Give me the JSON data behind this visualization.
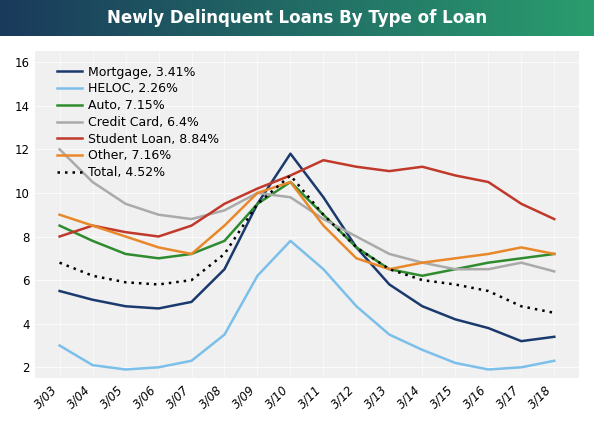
{
  "title": "Newly Delinquent Loans By Type of Loan",
  "title_bg_start": "#1a3a5c",
  "title_bg_end": "#2a9d6e",
  "x_labels": [
    "3/03",
    "3/04",
    "3/05",
    "3/06",
    "3/07",
    "3/08",
    "3/09",
    "3/10",
    "3/11",
    "3/12",
    "3/13",
    "3/14",
    "3/15",
    "3/16",
    "3/17",
    "3/18"
  ],
  "ylim": [
    1.5,
    16.5
  ],
  "yticks": [
    2,
    4,
    6,
    8,
    10,
    12,
    14,
    16
  ],
  "series": {
    "Mortgage": {
      "color": "#1a3a6e",
      "label": "Mortgage, 3.41%",
      "values": [
        5.5,
        5.1,
        4.8,
        4.7,
        5.0,
        6.5,
        9.5,
        11.8,
        9.8,
        7.5,
        5.8,
        4.8,
        4.2,
        3.8,
        3.2,
        3.4
      ]
    },
    "HELOC": {
      "color": "#7bbfea",
      "label": "HELOC, 2.26%",
      "values": [
        3.0,
        2.1,
        1.9,
        2.0,
        2.3,
        3.5,
        6.2,
        7.8,
        6.5,
        4.8,
        3.5,
        2.8,
        2.2,
        1.9,
        2.0,
        2.3
      ]
    },
    "Auto": {
      "color": "#2e8b2e",
      "label": "Auto, 7.15%",
      "values": [
        8.5,
        7.8,
        7.2,
        7.0,
        7.2,
        7.8,
        9.5,
        10.5,
        9.0,
        7.5,
        6.5,
        6.2,
        6.5,
        6.8,
        7.0,
        7.2
      ]
    },
    "CreditCard": {
      "color": "#aaaaaa",
      "label": "Credit Card, 6.4%",
      "values": [
        12.0,
        10.5,
        9.5,
        9.0,
        8.8,
        9.2,
        10.0,
        9.8,
        8.8,
        8.0,
        7.2,
        6.8,
        6.5,
        6.5,
        6.8,
        6.4
      ]
    },
    "StudentLoan": {
      "color": "#c0392b",
      "label": "Student Loan, 8.84%",
      "values": [
        8.0,
        8.5,
        8.2,
        8.0,
        8.5,
        9.5,
        10.2,
        10.8,
        11.5,
        11.2,
        11.0,
        11.2,
        10.8,
        10.5,
        9.5,
        8.8
      ]
    },
    "Other": {
      "color": "#e8882a",
      "label": "Other, 7.16%",
      "values": [
        9.0,
        8.5,
        8.0,
        7.5,
        7.2,
        8.5,
        10.0,
        10.5,
        8.5,
        7.0,
        6.5,
        6.8,
        7.0,
        7.2,
        7.5,
        7.2
      ]
    },
    "Total": {
      "color": "#000000",
      "label": "Total, 4.52%",
      "values": [
        6.8,
        6.2,
        5.9,
        5.8,
        6.0,
        7.2,
        9.5,
        10.8,
        9.0,
        7.5,
        6.5,
        6.0,
        5.8,
        5.5,
        4.8,
        4.5
      ]
    }
  },
  "legend_fontsize": 9,
  "tick_fontsize": 8.5,
  "background_color": "#ffffff",
  "plot_bg_color": "#f0f0f0"
}
